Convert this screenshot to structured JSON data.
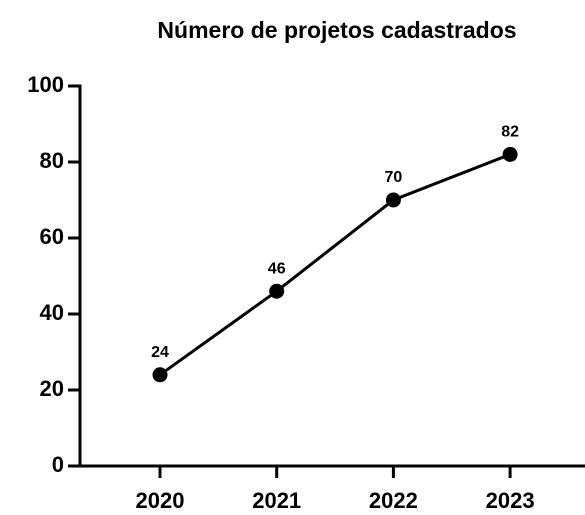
{
  "chart_data": {
    "type": "line",
    "title": "Número de projetos cadastrados",
    "categories": [
      "2020",
      "2021",
      "2022",
      "2023"
    ],
    "values": [
      24,
      46,
      70,
      82
    ],
    "color": "#000000",
    "ylim": [
      0,
      100
    ],
    "yticks": [
      0,
      20,
      40,
      60,
      80,
      100
    ],
    "grid": false
  }
}
